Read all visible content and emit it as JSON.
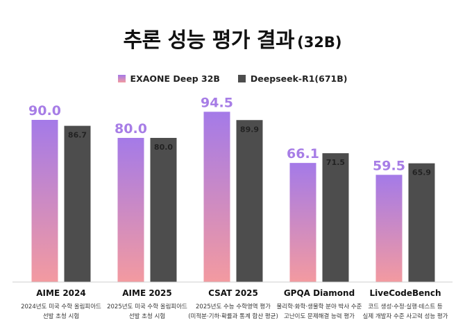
{
  "chart_data": {
    "type": "bar",
    "title": "추론 성능 평가 결과",
    "subtitle": "(32B)",
    "categories": [
      "AIME 2024",
      "AIME 2025",
      "CSAT 2025",
      "GPQA Diamond",
      "LiveCodeBench"
    ],
    "descriptions": [
      [
        "2024년도 미국 수학 올림피아드",
        "선발 초청 시험"
      ],
      [
        "2025년도 미국 수학 올림피아드",
        "선발 초청 시험"
      ],
      [
        "2025년도 수능 수학영역 평가",
        "(미적분·기하·확률과 통계 합산 평균)"
      ],
      [
        "물리학·화학·생물학 분야 박사 수준",
        "고난이도 문제해결 능력 평가"
      ],
      [
        "코드 생성·수정·실행·테스트 등",
        "실제 개발자 수준 사고력 성능 평가"
      ]
    ],
    "series": [
      {
        "name": "EXAONE Deep 32B",
        "values": [
          90.0,
          80.0,
          94.5,
          66.1,
          59.5
        ],
        "labels": [
          "90.0",
          "80.0",
          "94.5",
          "66.1",
          "59.5"
        ],
        "color_top": "#a47ae8",
        "color_bottom": "#f39aa0",
        "label_color": "#a77de6"
      },
      {
        "name": "Deepseek-R1(671B)",
        "values": [
          86.7,
          80.0,
          89.9,
          71.5,
          65.9
        ],
        "labels": [
          "86.7",
          "80.0",
          "89.9",
          "71.5",
          "65.9"
        ],
        "color": "#4d4d4d",
        "label_color": "#222222"
      }
    ],
    "ylim": [
      0,
      100
    ],
    "grid": false,
    "legend_position": "top-center"
  }
}
